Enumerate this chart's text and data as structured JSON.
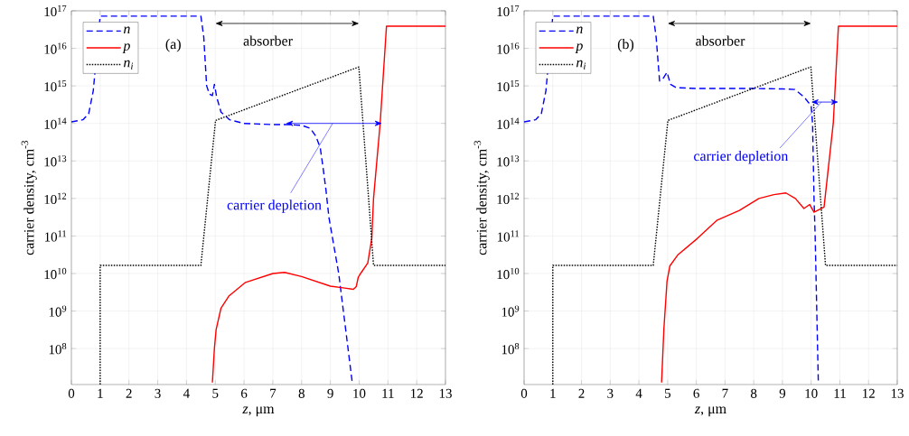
{
  "chart_data": [
    {
      "type": "line",
      "xlabel": "*z*, μm",
      "ylabel": "carrier density, cm$^{-3}$",
      "xlim": [
        0,
        13
      ],
      "ylim": [
        11000000.0,
        1e+17
      ],
      "log": "y",
      "grid": true,
      "legend": "top left",
      "xticks": [
        0,
        1,
        2,
        3,
        4,
        5,
        6,
        7,
        8,
        9,
        10,
        11,
        12,
        13
      ],
      "yticks": [
        {
          "value": 100000000.0,
          "label": "10$^{8}$"
        },
        {
          "value": 1000000000.0,
          "label": "10$^{9}$"
        },
        {
          "value": 10000000000.0,
          "label": "10$^{10}$"
        },
        {
          "value": 100000000000.0,
          "label": "10$^{11}$"
        },
        {
          "value": 1000000000000.0,
          "label": "10$^{12}$"
        },
        {
          "value": 10000000000000.0,
          "label": "10$^{13}$"
        },
        {
          "value": 100000000000000.0,
          "label": "10$^{14}$"
        },
        {
          "value": 1000000000000000.0,
          "label": "10$^{15}$"
        },
        {
          "value": 1e+16,
          "label": "10$^{16}$"
        },
        {
          "value": 1e+17,
          "label": "10$^{17}$"
        }
      ],
      "annotations": [
        "(a)",
        "absorber",
        "carrier depletion"
      ],
      "series": [
        {
          "name": "n",
          "color": "#0000ff",
          "line_style": "dashed",
          "x": [
            0,
            0.4,
            0.6,
            0.76,
            0.88,
            0.95,
            1.0,
            4.5,
            4.6,
            4.7,
            4.8,
            4.9,
            4.97,
            5.05,
            5.2,
            5.5,
            6.0,
            7.0,
            7.5,
            8.0,
            8.3,
            8.5,
            8.65,
            8.75,
            8.85,
            8.95,
            9.29,
            9.76
          ],
          "values": [
            110000000000000.0,
            125000000000000.0,
            180000000000000.0,
            740000000000000.0,
            null,
            null,
            7.2e+16,
            7.2e+16,
            2e+16,
            1000000000000000.0,
            600000000000000.0,
            550000000000000.0,
            1100000000000000.0,
            500000000000000.0,
            200000000000000.0,
            125000000000000.0,
            100000000000000.0,
            93000000000000.0,
            93000000000000.0,
            89000000000000.0,
            74000000000000.0,
            45000000000000.0,
            22000000000000.0,
            6300000000000.0,
            1600000000000.0,
            310000000000.0,
            10000000000.0,
            12500000.0
          ]
        },
        {
          "name": "p",
          "color": "#ff0000",
          "line_style": "solid",
          "x": [
            4.9,
            4.97,
            5.03,
            5.2,
            5.47,
            6.05,
            7.0,
            7.41,
            8.0,
            9.0,
            9.5,
            9.8,
            9.9,
            9.97,
            10.05,
            10.3,
            10.44,
            10.5,
            10.73,
            10.95,
            13
          ],
          "values": [
            12500000.0,
            100000000.0,
            320000000.0,
            1200000000.0,
            2500000000.0,
            5800000000.0,
            10000000000.0,
            10700000000.0,
            8300000000.0,
            4600000000.0,
            4100000000.0,
            3800000000.0,
            4500000000.0,
            8000000000.0,
            10000000000.0,
            19000000000.0,
            87000000000.0,
            1000000000000.0,
            100000000000000.0,
            3.9e+16,
            3.9e+16
          ]
        },
        {
          "name": "n$_{i}$",
          "color": "#000000",
          "line_style": "dotted",
          "x": [
            1,
            1,
            4.5,
            5.01,
            9.99,
            10.5,
            13
          ],
          "values": [
            11000000.0,
            16500000000.0,
            16500000000.0,
            120000000000000.0,
            3200000000000000.0,
            16500000000.0,
            16500000000.0
          ]
        }
      ]
    },
    {
      "type": "line",
      "xlabel": "*z*, μm",
      "ylabel": "carrier density, cm$^{-3}$",
      "xlim": [
        0,
        13
      ],
      "ylim": [
        11000000.0,
        1e+17
      ],
      "log": "y",
      "grid": true,
      "legend": "top left",
      "xticks": [
        0,
        1,
        2,
        3,
        4,
        5,
        6,
        7,
        8,
        9,
        10,
        11,
        12,
        13
      ],
      "yticks": [
        {
          "value": 100000000.0,
          "label": "10$^{8}$"
        },
        {
          "value": 1000000000.0,
          "label": "10$^{9}$"
        },
        {
          "value": 10000000000.0,
          "label": "10$^{10}$"
        },
        {
          "value": 100000000000.0,
          "label": "10$^{11}$"
        },
        {
          "value": 1000000000000.0,
          "label": "10$^{12}$"
        },
        {
          "value": 10000000000000.0,
          "label": "10$^{13}$"
        },
        {
          "value": 100000000000000.0,
          "label": "10$^{14}$"
        },
        {
          "value": 1000000000000000.0,
          "label": "10$^{15}$"
        },
        {
          "value": 1e+16,
          "label": "10$^{16}$"
        },
        {
          "value": 1e+17,
          "label": "10$^{17}$"
        }
      ],
      "annotations": [
        "(b)",
        "absorber",
        "carrier depletion"
      ],
      "series": [
        {
          "name": "n",
          "color": "#0000ff",
          "line_style": "dashed",
          "x": [
            0,
            0.4,
            0.6,
            0.76,
            0.88,
            0.95,
            1.0,
            4.5,
            4.6,
            4.72,
            4.85,
            4.98,
            5.1,
            5.3,
            6,
            7,
            8,
            9,
            9.43,
            9.75,
            9.92,
            10.0,
            10.05,
            10.1,
            10.14,
            10.25
          ],
          "values": [
            110000000000000.0,
            125000000000000.0,
            180000000000000.0,
            740000000000000.0,
            null,
            null,
            7.2e+16,
            7.2e+16,
            2e+16,
            1350000000000000.0,
            1600000000000000.0,
            2300000000000000.0,
            1100000000000000.0,
            900000000000000.0,
            850000000000000.0,
            850000000000000.0,
            850000000000000.0,
            830000000000000.0,
            800000000000000.0,
            510000000000000.0,
            350000000000000.0,
            300000000000000.0,
            100000000000000.0,
            1000000000000.0,
            100000000000.0,
            12500000.0
          ]
        },
        {
          "name": "p",
          "color": "#ff0000",
          "line_style": "solid",
          "x": [
            4.79,
            4.87,
            4.98,
            5.08,
            5.35,
            6.03,
            6.71,
            7.5,
            8.18,
            8.7,
            9.12,
            9.45,
            9.75,
            9.95,
            10.1,
            10.45,
            10.77,
            10.95,
            13
          ],
          "values": [
            12500000.0,
            330000000.0,
            6300000000.0,
            16000000000.0,
            31000000000.0,
            85000000000.0,
            260000000000.0,
            480000000000.0,
            1000000000000.0,
            1260000000000.0,
            1400000000000.0,
            1000000000000.0,
            540000000000.0,
            690000000000.0,
            430000000000.0,
            590000000000.0,
            100000000000000.0,
            3.9e+16,
            3.9e+16
          ]
        },
        {
          "name": "n$_{i}$",
          "color": "#000000",
          "line_style": "dotted",
          "x": [
            1,
            1,
            4.5,
            5.01,
            9.99,
            10.5,
            13
          ],
          "values": [
            11000000.0,
            16500000000.0,
            16500000000.0,
            120000000000000.0,
            3200000000000000.0,
            16500000000.0,
            16500000000.0
          ]
        }
      ]
    }
  ]
}
